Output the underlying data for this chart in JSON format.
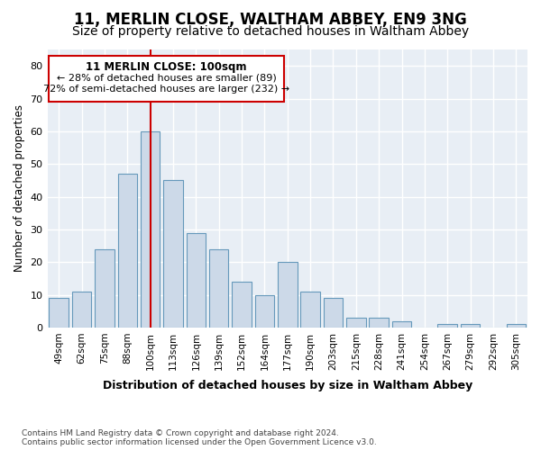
{
  "title1": "11, MERLIN CLOSE, WALTHAM ABBEY, EN9 3NG",
  "title2": "Size of property relative to detached houses in Waltham Abbey",
  "xlabel": "Distribution of detached houses by size in Waltham Abbey",
  "ylabel": "Number of detached properties",
  "categories": [
    "49sqm",
    "62sqm",
    "75sqm",
    "88sqm",
    "100sqm",
    "113sqm",
    "126sqm",
    "139sqm",
    "152sqm",
    "164sqm",
    "177sqm",
    "190sqm",
    "203sqm",
    "215sqm",
    "228sqm",
    "241sqm",
    "254sqm",
    "267sqm",
    "279sqm",
    "292sqm",
    "305sqm"
  ],
  "values": [
    9,
    11,
    24,
    47,
    60,
    45,
    29,
    24,
    14,
    10,
    20,
    11,
    9,
    3,
    3,
    2,
    0,
    1,
    1,
    0,
    1
  ],
  "bar_color": "#ccd9e8",
  "bar_edge_color": "#6699bb",
  "highlight_index": 4,
  "highlight_line_color": "#cc0000",
  "ylim": [
    0,
    85
  ],
  "yticks": [
    0,
    10,
    20,
    30,
    40,
    50,
    60,
    70,
    80
  ],
  "annotation_title": "11 MERLIN CLOSE: 100sqm",
  "annotation_line1": "← 28% of detached houses are smaller (89)",
  "annotation_line2": "72% of semi-detached houses are larger (232) →",
  "annotation_box_color": "#ffffff",
  "annotation_box_edge": "#cc0000",
  "footer1": "Contains HM Land Registry data © Crown copyright and database right 2024.",
  "footer2": "Contains public sector information licensed under the Open Government Licence v3.0.",
  "background_color": "#ffffff",
  "plot_bg_color": "#e8eef5",
  "grid_color": "#ffffff",
  "title1_fontsize": 12,
  "title2_fontsize": 10
}
